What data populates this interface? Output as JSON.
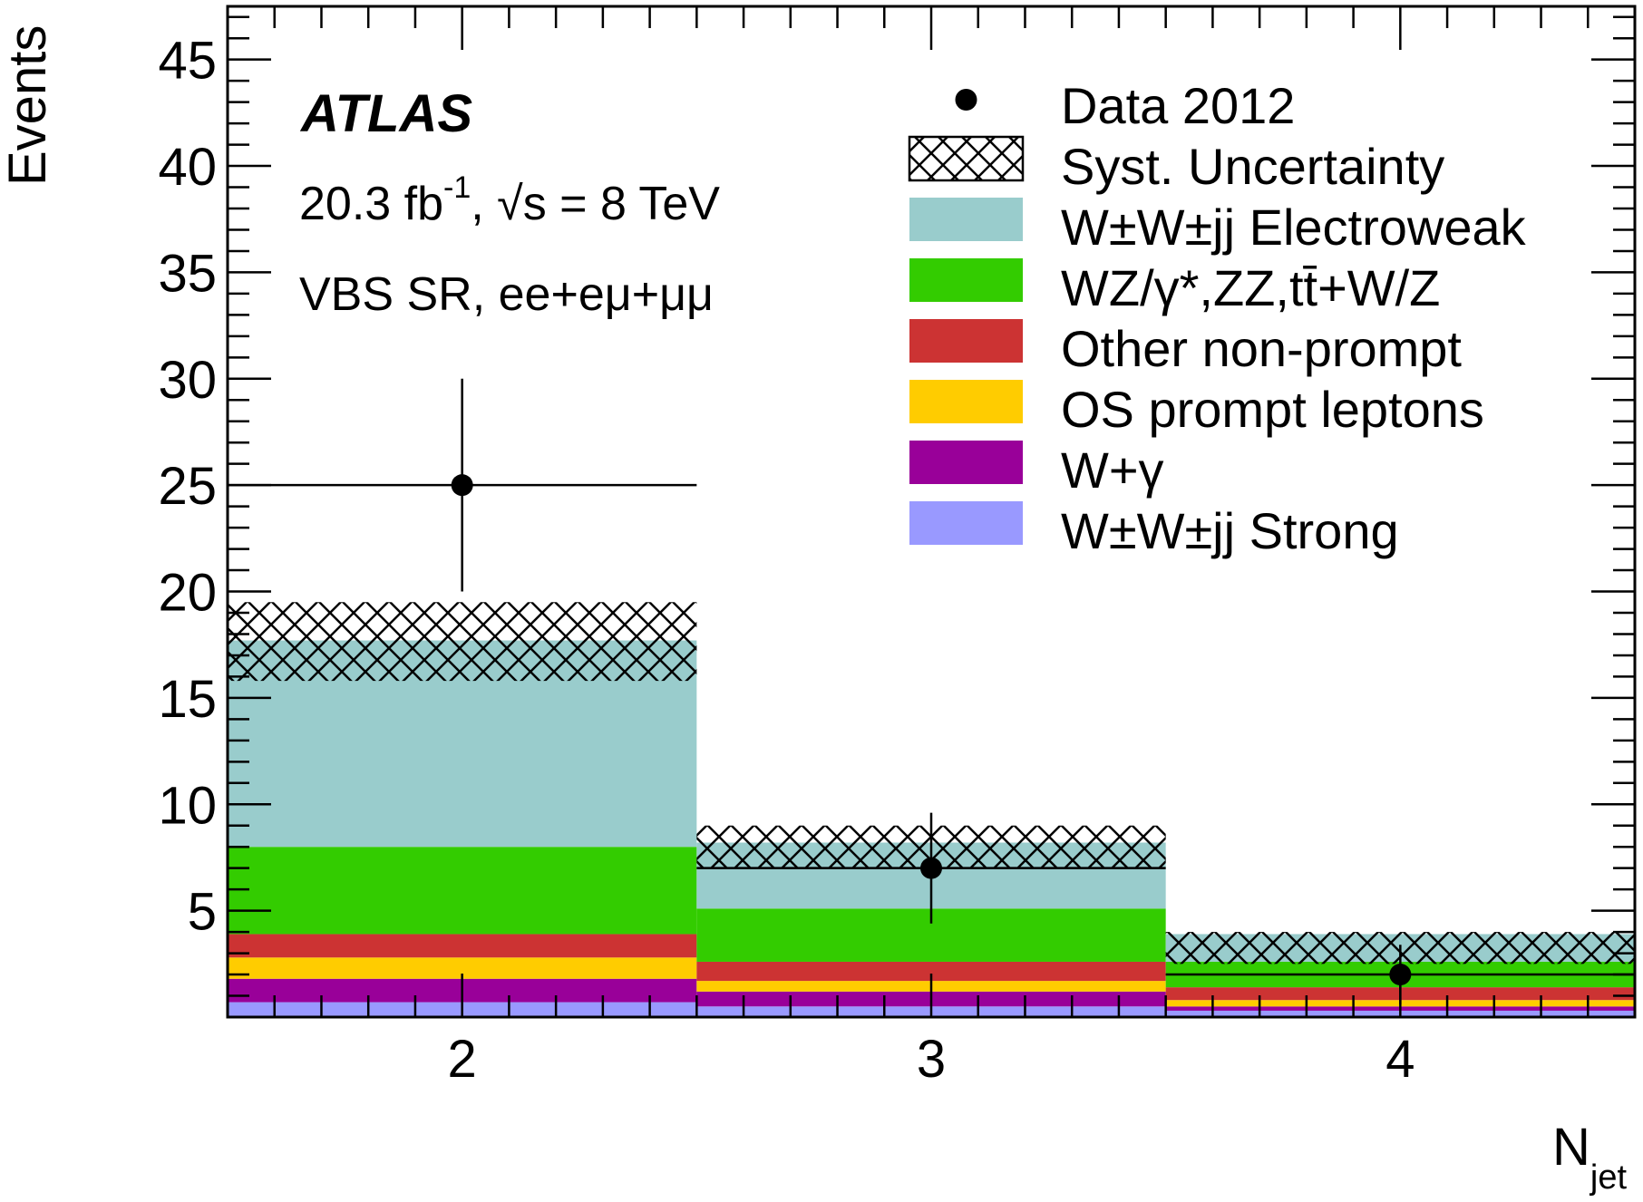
{
  "chart_data": {
    "type": "bar",
    "stacked": true,
    "x_bins": [
      {
        "low": 1.5,
        "high": 2.5,
        "center": 2
      },
      {
        "low": 2.5,
        "high": 3.5,
        "center": 3
      },
      {
        "low": 3.5,
        "high": 4.5,
        "center": 4
      }
    ],
    "xlim": [
      1.5,
      4.5
    ],
    "ylim": [
      0,
      47.5
    ],
    "x_ticks": [
      "2",
      "3",
      "4"
    ],
    "x_tick_values": [
      2,
      3,
      4
    ],
    "y_ticks": [
      "5",
      "10",
      "15",
      "20",
      "25",
      "30",
      "35",
      "40",
      "45"
    ],
    "y_tick_values": [
      5,
      10,
      15,
      20,
      25,
      30,
      35,
      40,
      45
    ],
    "xlabel": "N",
    "xlabel_sub": "jet",
    "ylabel": "Events",
    "series": [
      {
        "name": "W±W±jj Strong",
        "color": "#9999ff",
        "values": [
          0.7,
          0.5,
          0.3
        ]
      },
      {
        "name": "W+γ",
        "color": "#990099",
        "values": [
          1.1,
          0.7,
          0.2
        ]
      },
      {
        "name": "OS prompt leptons",
        "color": "#ffcc00",
        "values": [
          1.0,
          0.5,
          0.3
        ]
      },
      {
        "name": "Other non-prompt",
        "color": "#cc3333",
        "values": [
          1.1,
          0.9,
          0.6
        ]
      },
      {
        "name": "WZ/γ*,ZZ,tt̄+W/Z",
        "color": "#33cc00",
        "values": [
          4.1,
          2.5,
          1.2
        ]
      },
      {
        "name": "W±W±jj Electroweak",
        "color": "#99cccc",
        "values": [
          9.7,
          3.1,
          1.3
        ]
      }
    ],
    "syst_band": [
      {
        "low": 15.8,
        "high": 19.5
      },
      {
        "low": 7.0,
        "high": 9.0
      },
      {
        "low": 2.5,
        "high": 4.0
      }
    ],
    "data": {
      "name": "Data 2012",
      "values": [
        25,
        7,
        2
      ],
      "err_low": [
        5,
        2.6,
        1.4
      ],
      "err_high": [
        5,
        2.6,
        1.4
      ]
    },
    "legend_placement": "top-right",
    "legend": [
      {
        "label": "Data 2012",
        "kind": "marker"
      },
      {
        "label": "Syst. Uncertainty",
        "kind": "hatch"
      },
      {
        "label": "W±W±jj Electroweak",
        "kind": "fill",
        "color": "#99cccc"
      },
      {
        "label": "WZ/γ*,ZZ,tt̄+W/Z",
        "kind": "fill",
        "color": "#33cc00"
      },
      {
        "label": "Other non-prompt",
        "kind": "fill",
        "color": "#cc3333"
      },
      {
        "label": "OS prompt leptons",
        "kind": "fill",
        "color": "#ffcc00"
      },
      {
        "label": "W+γ",
        "kind": "fill",
        "color": "#990099"
      },
      {
        "label": "W±W±jj Strong",
        "kind": "fill",
        "color": "#9999ff"
      }
    ],
    "annotations": {
      "experiment": "ATLAS",
      "lumi_value": "20.3 fb",
      "lumi_sup": "-1",
      "lumi_rest": ", √s = 8 TeV",
      "region": "VBS SR, ee+eμ+μμ"
    }
  }
}
